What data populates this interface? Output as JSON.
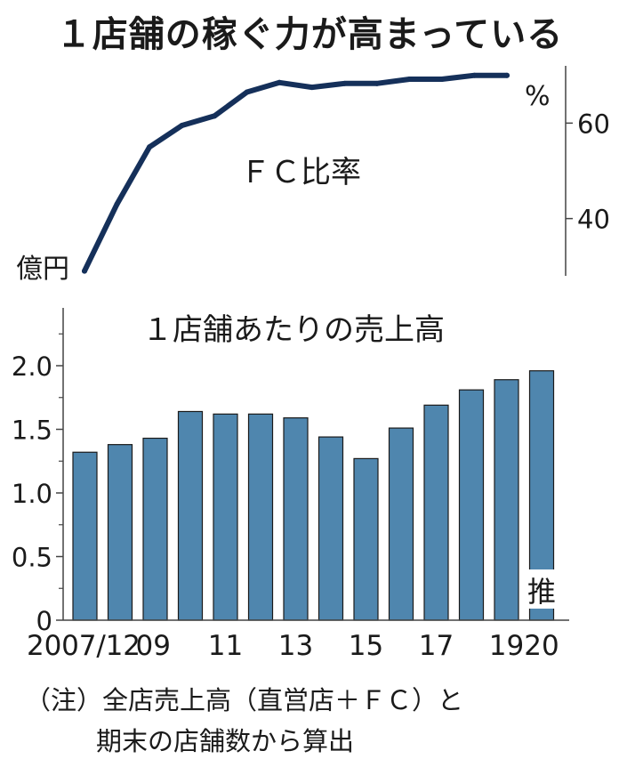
{
  "title": "１店舗の稼ぐ力が高まっている",
  "note": {
    "line1": "（注）全店売上高（直営店＋ＦＣ）と",
    "line2": "期末の店舗数から算出"
  },
  "chart_data": [
    {
      "type": "line",
      "title": "ＦＣ比率",
      "ylabel": "%",
      "ylim": [
        28,
        72
      ],
      "yticks": [
        40,
        60
      ],
      "x": [
        2007,
        2008,
        2009,
        2010,
        2011,
        2012,
        2013,
        2014,
        2015,
        2016,
        2017,
        2018,
        2019,
        2020
      ],
      "values": [
        29,
        43,
        55,
        59.5,
        61.5,
        66.5,
        68.5,
        67.5,
        68.3,
        68.3,
        69.2,
        69.2,
        70,
        70
      ],
      "color": "#15305a",
      "axis_side": "right"
    },
    {
      "type": "bar",
      "title": "１店舗あたりの売上高",
      "ylabel": "億円",
      "ylim": [
        0,
        2.4
      ],
      "yticks": [
        "0",
        "0.5",
        "1.0",
        "1.5",
        "2.0"
      ],
      "categories": [
        "2007/12",
        "2008",
        "2009",
        "2010",
        "2011",
        "2012",
        "2013",
        "2014",
        "2015",
        "2016",
        "2017",
        "2018",
        "2019",
        "2020"
      ],
      "values": [
        1.32,
        1.38,
        1.43,
        1.64,
        1.62,
        1.62,
        1.59,
        1.44,
        1.27,
        1.51,
        1.69,
        1.81,
        1.89,
        1.96
      ],
      "xtick_labels": [
        {
          "index": 0,
          "text": "2007/12"
        },
        {
          "index": 2,
          "text": "09"
        },
        {
          "index": 4,
          "text": "11"
        },
        {
          "index": 6,
          "text": "13"
        },
        {
          "index": 8,
          "text": "15"
        },
        {
          "index": 10,
          "text": "17"
        },
        {
          "index": 12,
          "text": "19"
        },
        {
          "index": 13,
          "text": "20"
        }
      ],
      "annotation": {
        "index": 13,
        "text": "推"
      },
      "bar_color": "#4f86ae",
      "bar_edge": "#1a1a1a"
    }
  ]
}
